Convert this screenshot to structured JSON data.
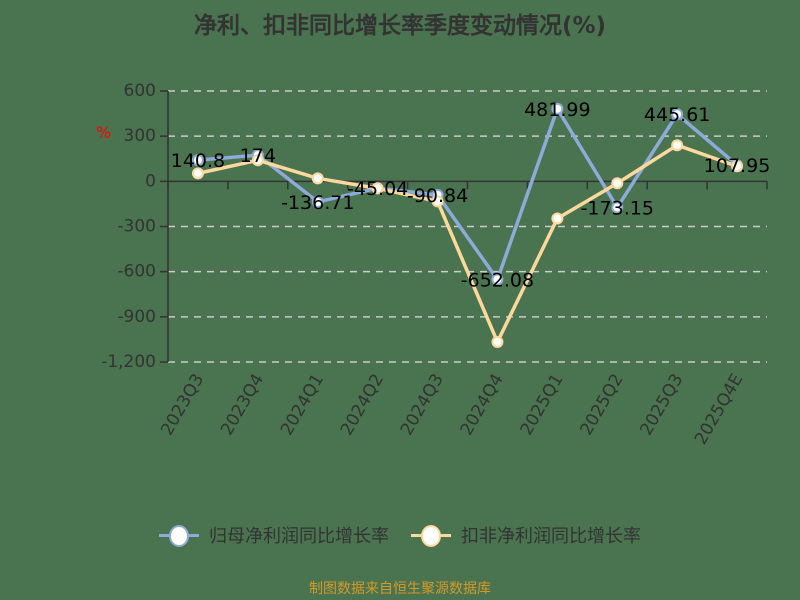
{
  "title": "净利、扣非同比增长率季度变动情况(%)",
  "unit_label": "%",
  "source": "制图数据来自恒生聚源数据库",
  "colors": {
    "series1": "#8eaad8",
    "series2": "#ffd89c",
    "grid": "#cccccc",
    "axis": "#333333"
  },
  "legend": [
    {
      "label": "归母净利润同比增长率"
    },
    {
      "label": "扣非净利润同比增长率"
    }
  ],
  "chart_data": {
    "type": "line",
    "title": "净利、扣非同比增长率季度变动情况(%)",
    "xlabel": "",
    "ylabel": "%",
    "ylim": [
      -1200,
      600
    ],
    "yticks": [
      600,
      300,
      0,
      -300,
      -600,
      -900,
      -1200
    ],
    "ytick_labels": [
      "600",
      "300",
      "0",
      "-300",
      "-600",
      "-900",
      "-1,200"
    ],
    "grid": true,
    "legend_position": "bottom",
    "categories": [
      "2023Q3",
      "2023Q4",
      "2024Q1",
      "2024Q2",
      "2024Q3",
      "2024Q4",
      "2025Q1",
      "2025Q2",
      "2025Q3",
      "2025Q4E"
    ],
    "series": [
      {
        "name": "归母净利润同比增长率",
        "values": [
          140.8,
          174,
          -136.71,
          -45.04,
          -90.84,
          -652.08,
          481.99,
          -173.15,
          445.61,
          107.95
        ],
        "labels": [
          "140.8",
          "174",
          "-136.71",
          "-45.04",
          "-90.84",
          "-652.08",
          "481.99",
          "-173.15",
          "445.61",
          "107.95"
        ]
      },
      {
        "name": "扣非净利润同比增长率",
        "values": [
          53,
          140,
          20,
          -47,
          -133,
          -1067,
          -247,
          -13,
          240,
          100
        ]
      }
    ]
  }
}
